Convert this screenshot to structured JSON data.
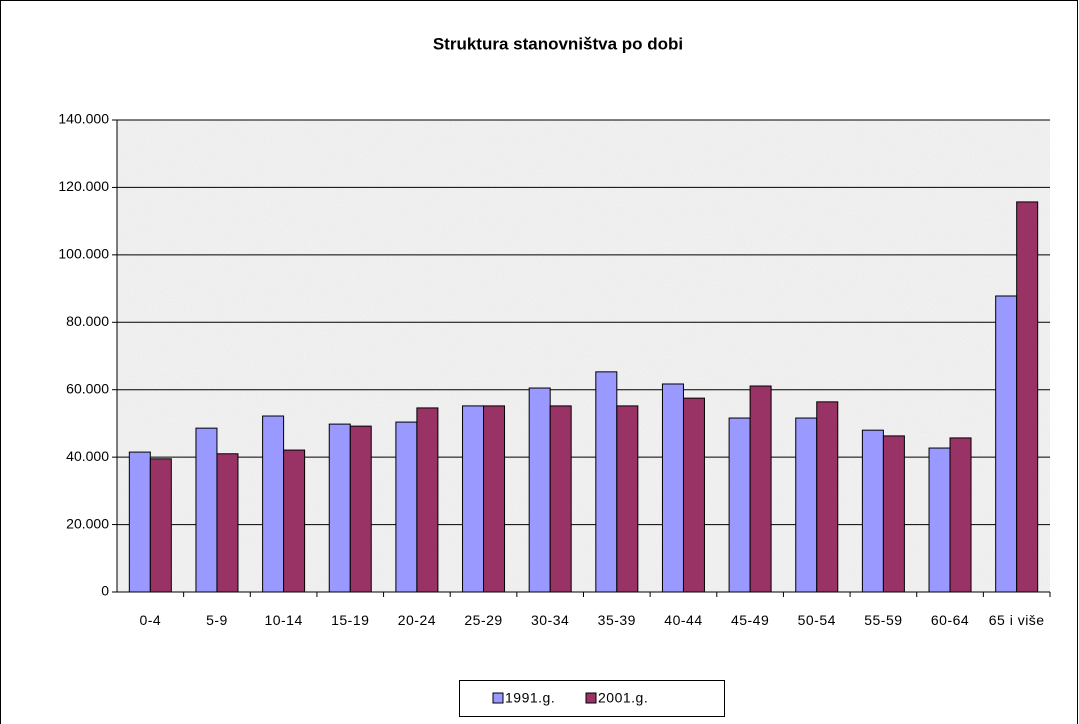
{
  "chart_data": {
    "type": "bar",
    "title": "Struktura stanovništva po dobi",
    "categories": [
      "0-4",
      "5-9",
      "10-14",
      "15-19",
      "20-24",
      "25-29",
      "30-34",
      "35-39",
      "40-44",
      "45-49",
      "50-54",
      "55-59",
      "60-64",
      "65 i više"
    ],
    "series": [
      {
        "name": "1991.g.",
        "color": "#9999ff",
        "values": [
          41500,
          48600,
          52200,
          49800,
          50400,
          55200,
          60500,
          65300,
          61700,
          51600,
          51600,
          48000,
          42700,
          87800
        ]
      },
      {
        "name": "2001.g.",
        "color": "#993366",
        "values": [
          39500,
          41000,
          42100,
          49200,
          54600,
          55200,
          55200,
          55200,
          57500,
          61100,
          56400,
          46300,
          45700,
          115700
        ]
      }
    ],
    "ylim": [
      0,
      140000
    ],
    "yticks": [
      0,
      {
        "value": 20000,
        "label": "20.000"
      },
      {
        "value": 40000,
        "label": "40.000"
      },
      {
        "value": 60000,
        "label": "60.000"
      },
      {
        "value": 80000,
        "label": "80.000"
      },
      {
        "value": 100000,
        "label": "100.000"
      },
      {
        "value": 120000,
        "label": "120.000"
      },
      {
        "value": 140000,
        "label": "140.000"
      }
    ],
    "grid": true,
    "legend": "bottom"
  }
}
